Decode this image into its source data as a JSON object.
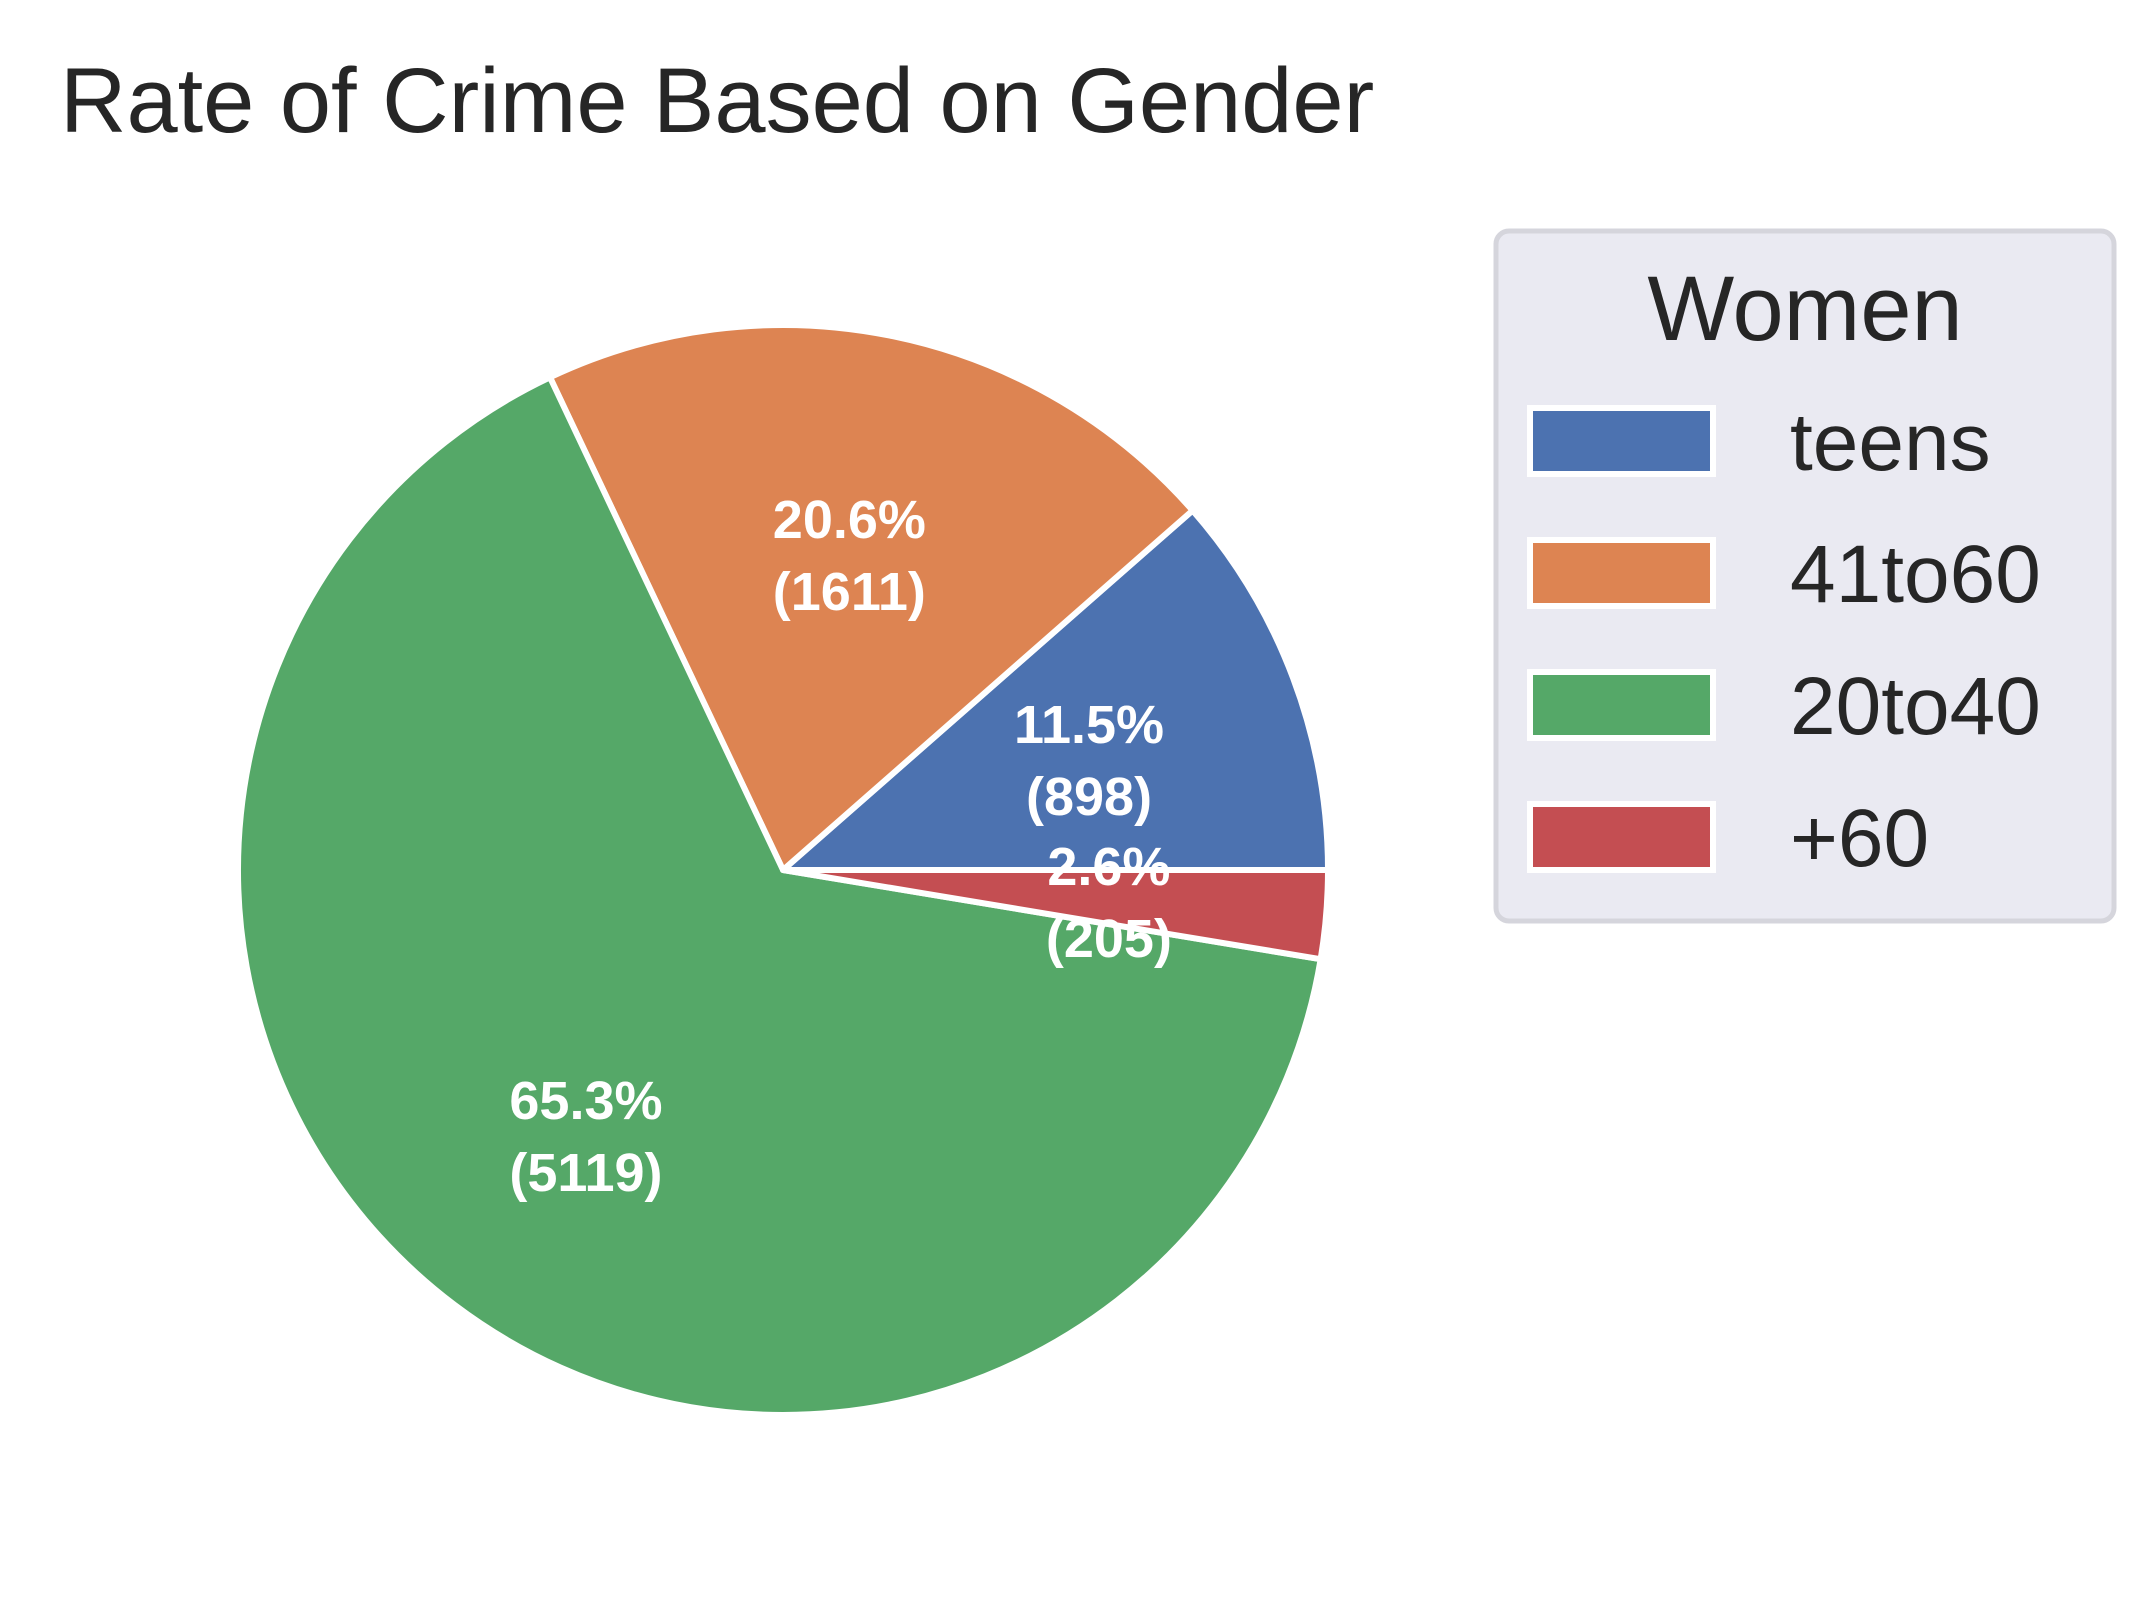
{
  "chart_data": {
    "type": "pie",
    "title": "Rate of Crime Based on Gender",
    "legend": {
      "title": "Women",
      "placement": "right"
    },
    "slices": [
      {
        "label": "teens",
        "value": 898,
        "percent": "11.5%",
        "count_label": "(898)",
        "color": "#4c72b0"
      },
      {
        "label": "41to60",
        "value": 1611,
        "percent": "20.6%",
        "count_label": "(1611)",
        "color": "#dd8452"
      },
      {
        "label": "20to40",
        "value": 5119,
        "percent": "65.3%",
        "count_label": "(5119)",
        "color": "#55a868"
      },
      {
        "label": "+60",
        "value": 205,
        "percent": "2.6%",
        "count_label": "(205)",
        "color": "#c44e52"
      }
    ],
    "start_angle": 0,
    "direction": "counterclockwise",
    "edge_color": "#ffffff"
  }
}
